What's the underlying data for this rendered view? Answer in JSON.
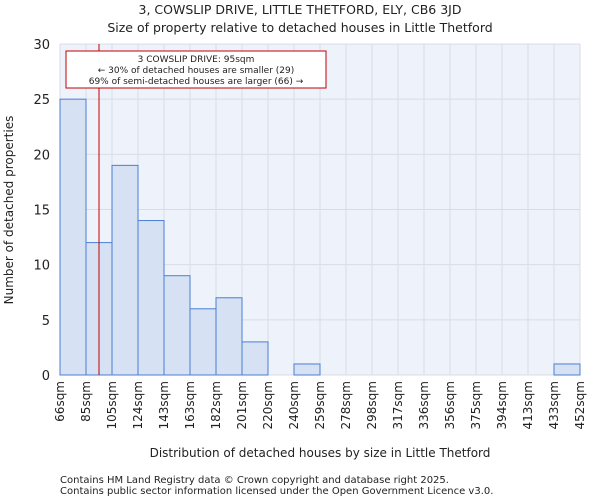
{
  "chart_data": {
    "type": "bar",
    "title": "3, COWSLIP DRIVE, LITTLE THETFORD, ELY, CB6 3JD",
    "subtitle": "Size of property relative to detached houses in Little Thetford",
    "xlabel": "Distribution of detached houses by size in Little Thetford",
    "ylabel": "Number of detached properties",
    "x_tick_labels": [
      "66sqm",
      "85sqm",
      "105sqm",
      "124sqm",
      "143sqm",
      "163sqm",
      "182sqm",
      "201sqm",
      "220sqm",
      "240sqm",
      "259sqm",
      "278sqm",
      "298sqm",
      "317sqm",
      "336sqm",
      "356sqm",
      "375sqm",
      "394sqm",
      "413sqm",
      "433sqm",
      "452sqm"
    ],
    "values": [
      25,
      12,
      19,
      14,
      9,
      6,
      7,
      3,
      0,
      1,
      0,
      0,
      0,
      0,
      0,
      0,
      0,
      0,
      0,
      1
    ],
    "ylim": [
      0,
      30
    ],
    "y_ticks": [
      0,
      5,
      10,
      15,
      20,
      25,
      30
    ],
    "grid": true,
    "marker": {
      "value_sqm": 95,
      "bin_start": 85,
      "bin_end": 105
    },
    "annotation": {
      "line1": "3 COWSLIP DRIVE: 95sqm",
      "line2": "← 30% of detached houses are smaller (29)",
      "line3": "69% of semi-detached houses are larger (66) →"
    },
    "colors": {
      "bar_fill": "#d6e2f3",
      "bar_edge": "#4a7fd4",
      "marker": "#c00000",
      "plot_bg": "#eef2fb",
      "grid": "#ffffff"
    }
  },
  "footer": {
    "line1": "Contains HM Land Registry data © Crown copyright and database right 2025.",
    "line2": "Contains public sector information licensed under the Open Government Licence v3.0."
  }
}
